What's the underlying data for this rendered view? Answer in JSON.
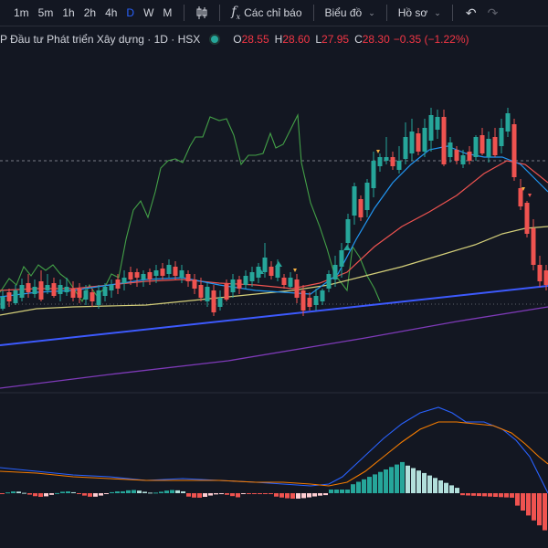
{
  "toolbar": {
    "timeframes": [
      "1m",
      "5m",
      "1h",
      "2h",
      "4h",
      "D",
      "W",
      "M"
    ],
    "active_timeframe": "D",
    "indicators_label": "Các chỉ báo",
    "chart_type_label": "Biểu đồ",
    "profile_label": "Hồ sơ",
    "icons": [
      "candles-icon",
      "function-icon",
      "undo-icon",
      "redo-icon"
    ]
  },
  "legend": {
    "title": "P Đầu tư Phát triển Xây dựng · 1D · HSX",
    "open_label": "O",
    "open": "28.55",
    "high_label": "H",
    "high": "28.60",
    "low_label": "L",
    "low": "27.95",
    "close_label": "C",
    "close": "28.30",
    "change": "−0.35 (−1.22%)",
    "market_status_color": "#26a69a"
  },
  "colors": {
    "up": "#26a69a",
    "down": "#ef5350",
    "background": "#131722",
    "ma_fast": "#2196f3",
    "ma_mid": "#ef5350",
    "ma_slow": "#d4cf7a",
    "trendline": "#3d5afe",
    "trendline2": "#7e3ab8",
    "oscillator": "#43a047",
    "macd": "#2962ff",
    "signal": "#f57c00"
  },
  "chart_data": {
    "type": "candlestick",
    "interval": "1D",
    "exchange": "HSX",
    "last_bar": {
      "open": 28.55,
      "high": 28.6,
      "low": 27.95,
      "close": 28.3
    },
    "change_pct": -1.22
  }
}
